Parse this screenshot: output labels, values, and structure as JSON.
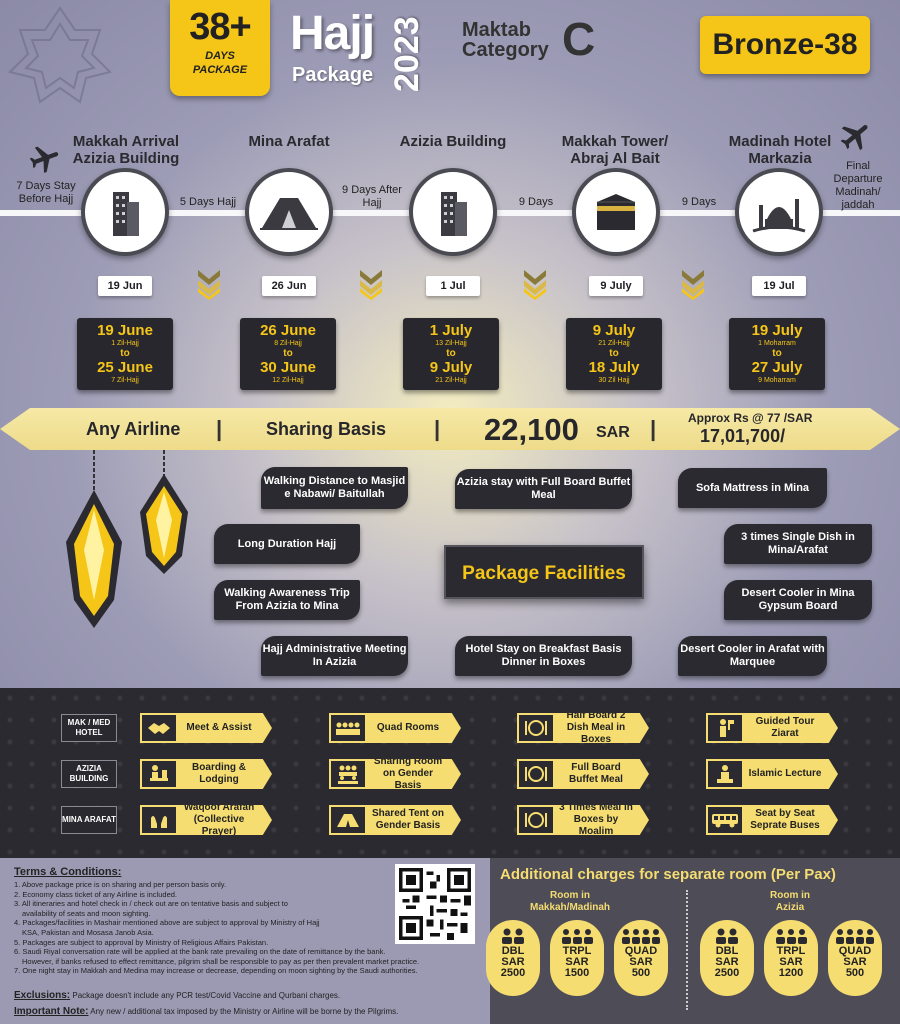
{
  "header": {
    "days_number": "38+",
    "days_line1": "DAYS",
    "days_line2": "PACKAGE",
    "title": "Hajj",
    "subtitle": "Package",
    "year": "2023",
    "maktab_line1": "Maktab",
    "maktab_line2": "Category",
    "maktab_letter": "C",
    "tier": "Bronze-38"
  },
  "timeline": {
    "before": "7 Days Stay Before Hajj",
    "final": "Final Departure Madinah/ jaddah",
    "stops": [
      {
        "title": "Makkah Arrival Azizia Building",
        "date": "19 Jun",
        "icon": "building-icon"
      },
      {
        "title": "Mina Arafat",
        "date": "26 Jun",
        "icon": "tent-icon"
      },
      {
        "title": "Azizia Building",
        "date": "1 Jul",
        "icon": "building-icon"
      },
      {
        "title": "Makkah Tower/ Abraj Al Bait",
        "date": "9 July",
        "icon": "kaaba-icon"
      },
      {
        "title": "Madinah Hotel Markazia",
        "date": "19 Jul",
        "icon": "mosque-icon"
      }
    ],
    "gaps": [
      "5 Days Hajj",
      "9 Days After Hajj",
      "9 Days",
      "9 Days"
    ]
  },
  "date_ranges": [
    {
      "from": "19 June",
      "from_h": "1 Zil-Hajj",
      "to_word": "to",
      "to": "25 June",
      "to_h": "7 Zil-Hajj"
    },
    {
      "from": "26 June",
      "from_h": "8 Zil-Hajj",
      "to_word": "to",
      "to": "30 June",
      "to_h": "12 Zil-Hajj"
    },
    {
      "from": "1 July",
      "from_h": "13 Zil-Hajj",
      "to_word": "to",
      "to": "9 July",
      "to_h": "21 Zil-Hajj"
    },
    {
      "from": "9 July",
      "from_h": "21 Zil-Hajj",
      "to_word": "to",
      "to": "18 July",
      "to_h": "30 Zil Hajj"
    },
    {
      "from": "19 July",
      "from_h": "1 Moharram",
      "to_word": "to",
      "to": "27 July",
      "to_h": "9 Moharram"
    }
  ],
  "banner": {
    "airline": "Any Airline",
    "sharing": "Sharing Basis",
    "price": "22,100",
    "currency": "SAR",
    "approx_label": "Approx Rs @ 77 /SAR",
    "approx_value": "17,01,700/"
  },
  "facilities": {
    "title": "Package Facilities",
    "items": [
      "Walking Distance to Masjid e Nabawi/ Baitullah",
      "Azizia stay with Full Board Buffet Meal",
      "Sofa Mattress in Mina",
      "Long Duration Hajj",
      "3 times Single Dish in Mina/Arafat",
      "Walking Awareness Trip From Azizia to Mina",
      "Desert Cooler in Mina Gypsum Board",
      "Hajj Administrative Meeting In Azizia",
      "Hotel Stay on Breakfast Basis Dinner in Boxes",
      "Desert Cooler in Arafat with Marquee"
    ]
  },
  "services": {
    "row_labels": [
      "MAK / MED HOTEL",
      "AZIZIA BUILDING",
      "MINA ARAFAT"
    ],
    "rows": [
      [
        {
          "label": "Meet & Assist",
          "icon": "handshake-icon"
        },
        {
          "label": "Quad Rooms",
          "icon": "people-icon"
        },
        {
          "label": "Half Board 2 Dish Meal in Boxes",
          "icon": "plate-icon"
        },
        {
          "label": "Guided Tour Ziarat",
          "icon": "guide-icon"
        }
      ],
      [
        {
          "label": "Boarding & Lodging",
          "icon": "desk-icon"
        },
        {
          "label": "Sharing Room on Gender Basis",
          "icon": "group-icon"
        },
        {
          "label": "Full Board Buffet Meal",
          "icon": "plate-icon"
        },
        {
          "label": "Islamic Lecture",
          "icon": "lecture-icon"
        }
      ],
      [
        {
          "label": "Waqoof Arafah (Collective Prayer)",
          "icon": "prayer-hands-icon"
        },
        {
          "label": "Shared Tent on Gender Basis",
          "icon": "tent-icon"
        },
        {
          "label": "3 Times Meal in Boxes by Moalim",
          "icon": "plate-icon"
        },
        {
          "label": "Seat by Seat Seprate Buses",
          "icon": "bus-icon"
        }
      ]
    ]
  },
  "terms": {
    "title": "Terms & Conditions:",
    "items": [
      "1. Above package price is on sharing and per person basis only.",
      "2. Economy class ticket of any Airline is included.",
      "3. All itineraries and hotel check in / check out are on tentative basis and subject to",
      "    availability of seats and moon sighting.",
      "4. Packages/facilities in Mashair mentioned above are subject to approval by Ministry of Hajj",
      "    KSA, Pakistan and Mosasa Janob Asia.",
      "5. Packages are subject to approval by Ministry of Religious Affairs Pakistan.",
      "6. Saudi Riyal conversation rate will be applied at the bank rate prevailing on the date of remittance by the bank.",
      "    However, if banks refused to effect remittance, pilgrim shall be responsible to pay as per then prevalent market practice.",
      "7. One night stay in Makkah and Medina may increase or decrease, depending on moon sighting by the Saudi authorities."
    ],
    "exclusions_label": "Exclusions:",
    "exclusions_text": "Package doesn't include any PCR test/Covid Vaccine and Qurbani charges.",
    "note_label": "Important Note:",
    "note_text": "Any new / additional tax imposed by the Ministry or Airline will be borne by the Pilgrims."
  },
  "additional": {
    "title": "Additional charges for separate room (Per Pax)",
    "group1_label": "Room in Makkah/Madinah",
    "group2_label": "Room in Azizia",
    "group1": [
      {
        "type": "DBL",
        "cur": "SAR",
        "amount": "2500"
      },
      {
        "type": "TRPL",
        "cur": "SAR",
        "amount": "1500"
      },
      {
        "type": "QUAD",
        "cur": "SAR",
        "amount": "500"
      }
    ],
    "group2": [
      {
        "type": "DBL",
        "cur": "SAR",
        "amount": "2500"
      },
      {
        "type": "TRPL",
        "cur": "SAR",
        "amount": "1200"
      },
      {
        "type": "QUAD",
        "cur": "SAR",
        "amount": "500"
      }
    ]
  },
  "colors": {
    "accent": "#f5c518",
    "dark": "#2b2a30",
    "light_yellow": "#f5dd71"
  }
}
